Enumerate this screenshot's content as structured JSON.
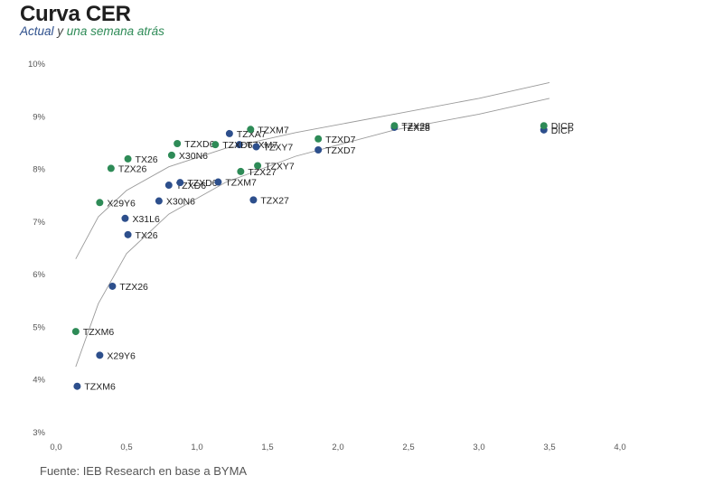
{
  "header": {
    "title": "Curva CER",
    "subtitle_actual": "Actual",
    "subtitle_y": " y ",
    "subtitle_prev": "una semana atrás"
  },
  "footer": {
    "source": "Fuente: IEB Research en base a BYMA"
  },
  "colors": {
    "actual": "#2d4f8c",
    "previous": "#2e8b57",
    "trend": "#9a9a9a"
  },
  "chart_data": {
    "type": "scatter",
    "title": "Curva CER",
    "xlabel": "",
    "ylabel": "",
    "xlim": [
      0,
      4
    ],
    "ylim": [
      3,
      10
    ],
    "x_ticks": [
      "0,0",
      "0,5",
      "1,0",
      "1,5",
      "2,0",
      "2,5",
      "3,0",
      "3,5",
      "4,0"
    ],
    "y_ticks": [
      "3%",
      "4%",
      "5%",
      "6%",
      "7%",
      "8%",
      "9%",
      "10%"
    ],
    "grid": false,
    "series": [
      {
        "name": "Actual",
        "color": "#2d4f8c",
        "points": [
          {
            "label": "TZXM6",
            "x": 0.15,
            "y": 3.88
          },
          {
            "label": "X29Y6",
            "x": 0.31,
            "y": 4.47
          },
          {
            "label": "TZX26",
            "x": 0.4,
            "y": 5.78
          },
          {
            "label": "TX26",
            "x": 0.51,
            "y": 6.76
          },
          {
            "label": "X31L6",
            "x": 0.49,
            "y": 7.07
          },
          {
            "label": "X30N6",
            "x": 0.73,
            "y": 7.4
          },
          {
            "label": "TZXD6",
            "x": 0.8,
            "y": 7.7
          },
          {
            "label": "TZXD6",
            "x": 0.88,
            "y": 7.75
          },
          {
            "label": "TZXM7",
            "x": 1.15,
            "y": 7.76
          },
          {
            "label": "TZX27",
            "x": 1.4,
            "y": 7.42
          },
          {
            "label": "TZXA7",
            "x": 1.23,
            "y": 8.68
          },
          {
            "label": "TZXM7",
            "x": 1.3,
            "y": 8.47
          },
          {
            "label": "TZXY7",
            "x": 1.42,
            "y": 8.43
          },
          {
            "label": "TZXD7",
            "x": 1.86,
            "y": 8.37
          },
          {
            "label": "TZX28",
            "x": 2.4,
            "y": 8.8
          },
          {
            "label": "DICP",
            "x": 3.46,
            "y": 8.75
          }
        ]
      },
      {
        "name": "Una semana atrás",
        "color": "#2e8b57",
        "points": [
          {
            "label": "TZXM6",
            "x": 0.14,
            "y": 4.92
          },
          {
            "label": "X29Y6",
            "x": 0.31,
            "y": 7.37
          },
          {
            "label": "TZX26",
            "x": 0.39,
            "y": 8.02
          },
          {
            "label": "TX26",
            "x": 0.51,
            "y": 8.2
          },
          {
            "label": "X30N6",
            "x": 0.82,
            "y": 8.27
          },
          {
            "label": "TZXD6",
            "x": 0.86,
            "y": 8.49
          },
          {
            "label": "TZXD6",
            "x": 1.13,
            "y": 8.47
          },
          {
            "label": "TZXM7",
            "x": 1.38,
            "y": 8.76
          },
          {
            "label": "TZXY7",
            "x": 1.43,
            "y": 8.07
          },
          {
            "label": "TZX27",
            "x": 1.31,
            "y": 7.96
          },
          {
            "label": "TZXD7",
            "x": 1.86,
            "y": 8.58
          },
          {
            "label": "TZX28",
            "x": 2.4,
            "y": 8.83
          },
          {
            "label": "DICP",
            "x": 3.46,
            "y": 8.83
          }
        ]
      }
    ],
    "trendlines": [
      {
        "series": "Actual",
        "points": [
          [
            0.14,
            4.25
          ],
          [
            0.3,
            5.45
          ],
          [
            0.5,
            6.4
          ],
          [
            0.8,
            7.15
          ],
          [
            1.2,
            7.75
          ],
          [
            1.7,
            8.25
          ],
          [
            2.4,
            8.75
          ],
          [
            3.0,
            9.05
          ],
          [
            3.5,
            9.35
          ]
        ]
      },
      {
        "series": "Una semana atrás",
        "points": [
          [
            0.14,
            6.3
          ],
          [
            0.3,
            7.1
          ],
          [
            0.5,
            7.6
          ],
          [
            0.8,
            8.05
          ],
          [
            1.2,
            8.4
          ],
          [
            1.7,
            8.7
          ],
          [
            2.4,
            9.05
          ],
          [
            3.0,
            9.35
          ],
          [
            3.5,
            9.65
          ]
        ]
      }
    ]
  }
}
